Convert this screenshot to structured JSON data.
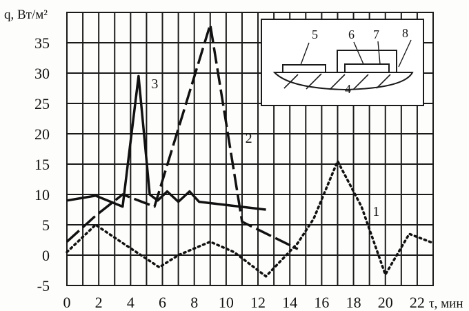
{
  "chart_data": {
    "type": "line",
    "ylabel": "q, Вт/м²",
    "xlabel": "τ, мин",
    "xlim": [
      0,
      23
    ],
    "ylim": [
      -5,
      40
    ],
    "x_ticks": [
      0,
      2,
      4,
      6,
      8,
      10,
      12,
      14,
      16,
      18,
      20,
      22
    ],
    "y_ticks": [
      -5,
      0,
      5,
      10,
      15,
      20,
      25,
      30,
      35
    ],
    "grid": true,
    "series": [
      {
        "name": "1",
        "style": "dotted",
        "points": [
          [
            0,
            0.5
          ],
          [
            1.8,
            5
          ],
          [
            3.5,
            2
          ],
          [
            5.8,
            -2
          ],
          [
            7,
            0
          ],
          [
            9,
            2.2
          ],
          [
            10.5,
            0.5
          ],
          [
            12.5,
            -3.5
          ],
          [
            14.5,
            2
          ],
          [
            15.5,
            6
          ],
          [
            17,
            15.5
          ],
          [
            18.5,
            8
          ],
          [
            20,
            -3.2
          ],
          [
            21.5,
            3.5
          ],
          [
            23,
            2
          ]
        ]
      },
      {
        "name": "2",
        "style": "dashed",
        "points": [
          [
            0,
            2.2
          ],
          [
            1.8,
            6.5
          ],
          [
            3.5,
            10
          ],
          [
            5.5,
            8
          ],
          [
            9,
            38
          ],
          [
            11,
            5.5
          ],
          [
            14.5,
            1
          ]
        ]
      },
      {
        "name": "3",
        "style": "solid",
        "points": [
          [
            0,
            9
          ],
          [
            1.8,
            9.8
          ],
          [
            3.5,
            8
          ],
          [
            4.5,
            29.5
          ],
          [
            5.2,
            10
          ],
          [
            5.7,
            9
          ],
          [
            6.3,
            10.5
          ],
          [
            7,
            8.8
          ],
          [
            7.7,
            10.5
          ],
          [
            8.3,
            8.8
          ],
          [
            12.5,
            7.5
          ]
        ]
      }
    ],
    "series_labels": [
      {
        "text": "1",
        "x": 19.2,
        "y": 6.5
      },
      {
        "text": "2",
        "x": 11.2,
        "y": 18.5
      },
      {
        "text": "3",
        "x": 5.3,
        "y": 27.5
      }
    ],
    "inset": {
      "labels": [
        "5",
        "6",
        "7",
        "8",
        "4"
      ]
    }
  }
}
